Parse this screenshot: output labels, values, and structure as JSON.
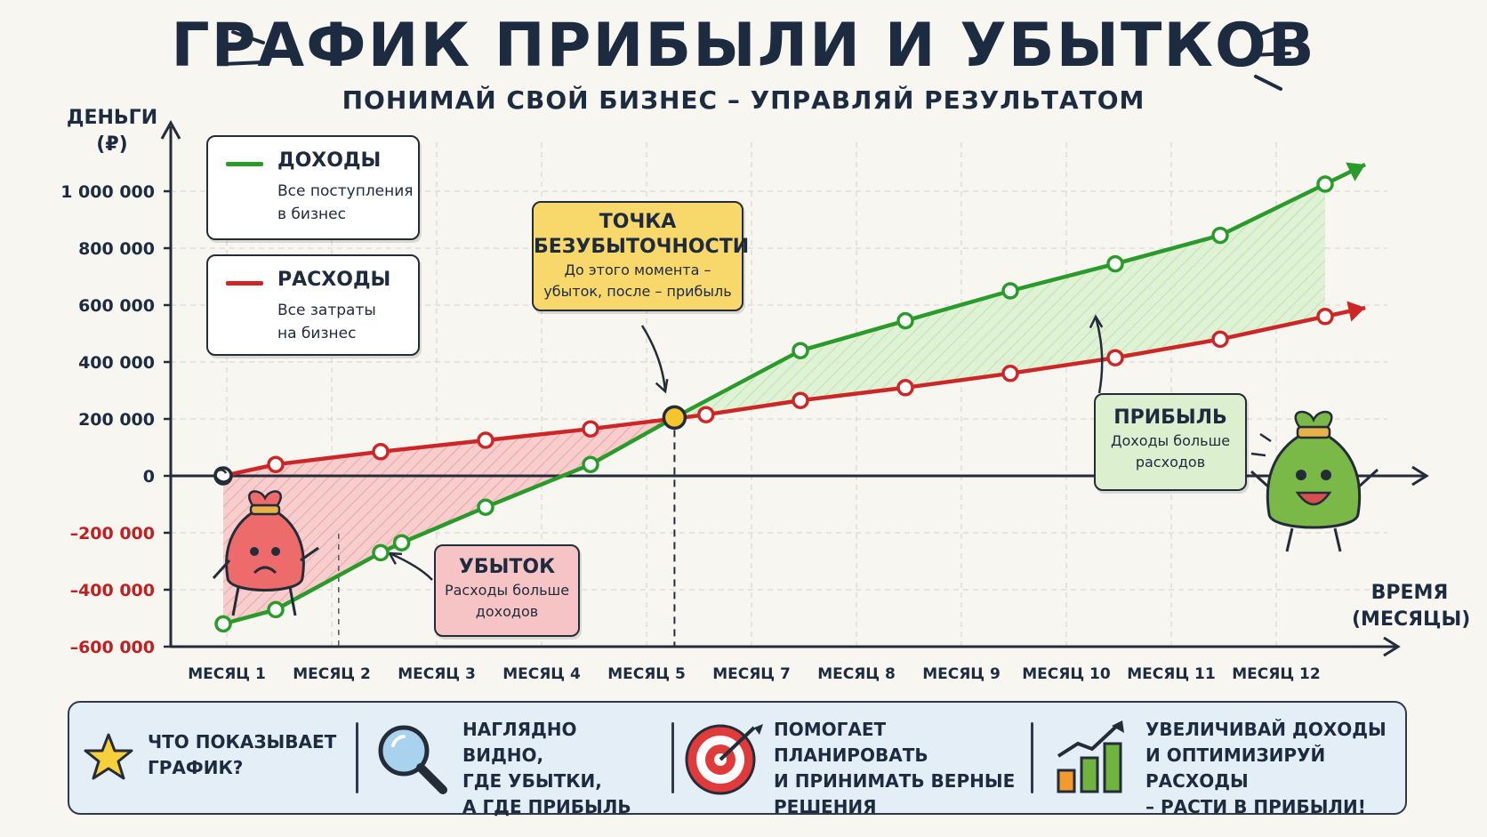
{
  "header": {
    "title": "ГРАФИК ПРИБЫЛИ И УБЫТКОВ",
    "subtitle": "ПОНИМАЙ СВОЙ БИЗНЕС – УПРАВЛЯЙ РЕЗУЛЬТАТОМ"
  },
  "chart_data": {
    "type": "line",
    "ylabel": "ДЕНЬГИ\n(₽)",
    "xlabel": "ВРЕМЯ\n(МЕСЯЦЫ)",
    "ylim": [
      -600000,
      1000000
    ],
    "y_ticks": [
      "1 000 000",
      "800 000",
      "600 000",
      "400 000",
      "200 000",
      "0",
      "–200 000",
      "–400 000",
      "–600 000"
    ],
    "y_tick_values": [
      1000000,
      800000,
      600000,
      400000,
      200000,
      0,
      -200000,
      -400000,
      -600000
    ],
    "x_ticks": [
      "МЕСЯЦ 1",
      "МЕСЯЦ 2",
      "МЕСЯЦ 3",
      "МЕСЯЦ 4",
      "МЕСЯЦ 5",
      "МЕСЯЦ 7",
      "МЕСЯЦ 8",
      "МЕСЯЦ 9",
      "МЕСЯЦ 10",
      "МЕСЯЦ 11",
      "МЕСЯЦ 12"
    ],
    "grid": true,
    "series": [
      {
        "name": "ДОХОДЫ",
        "color": "#2a9a2a",
        "points": [
          [
            0.5,
            -520000
          ],
          [
            1,
            -470000
          ],
          [
            2,
            -270000
          ],
          [
            2.2,
            -235000
          ],
          [
            3,
            -110000
          ],
          [
            4,
            40000
          ],
          [
            4.8,
            205000
          ],
          [
            6,
            440000
          ],
          [
            7,
            545000
          ],
          [
            8,
            650000
          ],
          [
            9,
            745000
          ],
          [
            10,
            845000
          ],
          [
            11,
            1025000
          ]
        ]
      },
      {
        "name": "РАСХОДЫ",
        "color": "#cc2626",
        "points": [
          [
            0.5,
            0
          ],
          [
            1,
            40000
          ],
          [
            2,
            85000
          ],
          [
            3,
            125000
          ],
          [
            4,
            165000
          ],
          [
            5.1,
            215000
          ],
          [
            6,
            265000
          ],
          [
            7,
            310000
          ],
          [
            8,
            360000
          ],
          [
            9,
            415000
          ],
          [
            10,
            480000
          ],
          [
            11,
            560000
          ]
        ]
      }
    ],
    "break_even": {
      "x": 4.8,
      "y": 205000
    }
  },
  "legend": [
    {
      "title": "ДОХОДЫ",
      "desc": "Все поступления\nв бизнес",
      "color": "#2a9a2a"
    },
    {
      "title": "РАСХОДЫ",
      "desc": "Все затраты\nна бизнес",
      "color": "#cc2626"
    }
  ],
  "callouts": {
    "break_even": {
      "title": "ТОЧКА\nБЕЗУБЫТОЧНОСТИ",
      "desc": "До этого момента –\nубыток, после – прибыль",
      "color": "#f8d86a"
    },
    "loss": {
      "title": "УБЫТОК",
      "desc": "Расходы больше\nдоходов",
      "color": "#f6c4c4"
    },
    "profit": {
      "title": "ПРИБЫЛЬ",
      "desc": "Доходы больше\nрасходов",
      "color": "#dcefcf"
    }
  },
  "bottom": {
    "items": [
      {
        "icon": "star-icon",
        "text": "ЧТО ПОКАЗЫВАЕТ\nГРАФИК?"
      },
      {
        "icon": "magnifier-icon",
        "text": "НАГЛЯДНО ВИДНО,\nГДЕ УБЫТКИ,\nА ГДЕ ПРИБЫЛЬ"
      },
      {
        "icon": "target-icon",
        "text": "ПОМОГАЕТ ПЛАНИРОВАТЬ\nИ ПРИНИМАТЬ ВЕРНЫЕ\nРЕШЕНИЯ"
      },
      {
        "icon": "growth-chart-icon",
        "text": "УВЕЛИЧИВАЙ ДОХОДЫ\nИ ОПТИМИЗИРУЙ РАСХОДЫ\n– РАСТИ В ПРИБЫЛИ!"
      }
    ]
  }
}
